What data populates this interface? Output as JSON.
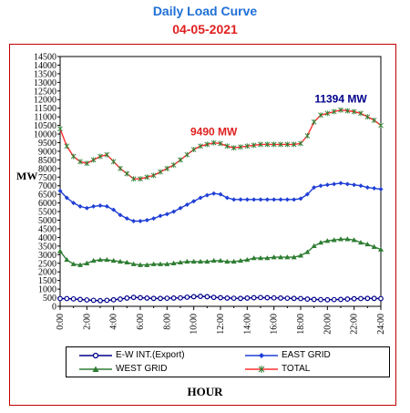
{
  "chart_data": {
    "type": "line",
    "title": "Daily Load Curve",
    "subtitle": "04-05-2021",
    "xlabel": "HOUR",
    "ylabel": "MW",
    "ylim": [
      0,
      14500
    ],
    "yticks": [
      "0",
      "500",
      "1000",
      "1500",
      "2000",
      "2500",
      "3000",
      "3500",
      "4000",
      "4500",
      "5000",
      "5500",
      "6000",
      "6500",
      "7000",
      "7500",
      "8000",
      "8500",
      "9000",
      "9500",
      "10000",
      "10500",
      "11000",
      "11500",
      "12000",
      "12500",
      "13000",
      "13500",
      "14000",
      "14500"
    ],
    "xticks": [
      "0:00",
      "2:00",
      "4:00",
      "6:00",
      "8:00",
      "10:00",
      "12:00",
      "14:00",
      "16:00",
      "18:00",
      "20:00",
      "22:00",
      "24:00"
    ],
    "x": [
      0,
      0.5,
      1,
      1.5,
      2,
      2.5,
      3,
      3.5,
      4,
      4.5,
      5,
      5.5,
      6,
      6.5,
      7,
      7.5,
      8,
      8.5,
      9,
      9.5,
      10,
      10.5,
      11,
      11.5,
      12,
      12.5,
      13,
      13.5,
      14,
      14.5,
      15,
      15.5,
      16,
      16.5,
      17,
      17.5,
      18,
      18.5,
      19,
      19.5,
      20,
      20.5,
      21,
      21.5,
      22,
      22.5,
      23,
      23.5,
      24
    ],
    "series": [
      {
        "name": "E-W INT.(Export)",
        "color": "#00008b",
        "marker": "circle",
        "values": [
          450,
          450,
          430,
          400,
          370,
          350,
          330,
          350,
          380,
          420,
          480,
          520,
          500,
          480,
          460,
          460,
          470,
          480,
          490,
          530,
          560,
          580,
          560,
          520,
          500,
          480,
          470,
          460,
          480,
          500,
          510,
          500,
          490,
          480,
          470,
          460,
          450,
          420,
          400,
          390,
          380,
          390,
          400,
          420,
          440,
          450,
          460,
          460,
          450
        ]
      },
      {
        "name": "EAST GRID",
        "color": "#1f3fd6",
        "marker": "diamond",
        "values": [
          6700,
          6300,
          6000,
          5800,
          5700,
          5800,
          5850,
          5800,
          5600,
          5300,
          5100,
          4950,
          4950,
          5000,
          5100,
          5250,
          5350,
          5500,
          5700,
          5900,
          6100,
          6300,
          6450,
          6550,
          6500,
          6300,
          6200,
          6200,
          6200,
          6200,
          6200,
          6200,
          6200,
          6200,
          6200,
          6200,
          6250,
          6500,
          6900,
          7000,
          7050,
          7100,
          7150,
          7100,
          7050,
          7000,
          6900,
          6850,
          6800
        ]
      },
      {
        "name": "WEST GRID",
        "color": "#2e7d32",
        "marker": "triangle",
        "values": [
          3200,
          2700,
          2450,
          2400,
          2500,
          2650,
          2700,
          2700,
          2650,
          2600,
          2550,
          2450,
          2400,
          2400,
          2450,
          2450,
          2450,
          2500,
          2550,
          2600,
          2600,
          2600,
          2600,
          2650,
          2650,
          2600,
          2600,
          2650,
          2700,
          2800,
          2800,
          2800,
          2850,
          2850,
          2850,
          2850,
          2950,
          3150,
          3500,
          3700,
          3800,
          3850,
          3900,
          3900,
          3850,
          3700,
          3600,
          3450,
          3300
        ]
      },
      {
        "name": "TOTAL",
        "color": "#ff3030",
        "marker": "star",
        "values": [
          10300,
          9300,
          8700,
          8400,
          8300,
          8500,
          8700,
          8800,
          8400,
          8000,
          7700,
          7400,
          7400,
          7500,
          7600,
          7800,
          8000,
          8200,
          8500,
          8800,
          9100,
          9300,
          9400,
          9490,
          9450,
          9300,
          9200,
          9250,
          9300,
          9350,
          9400,
          9400,
          9400,
          9400,
          9400,
          9400,
          9450,
          9900,
          10700,
          11100,
          11200,
          11300,
          11394,
          11350,
          11300,
          11200,
          11000,
          10800,
          10500
        ]
      }
    ],
    "annotations": [
      {
        "text": "9490 MW",
        "color": "#e02020"
      },
      {
        "text": "11394 MW",
        "color": "#00008b"
      }
    ],
    "grid": false,
    "legend_position": "bottom"
  }
}
